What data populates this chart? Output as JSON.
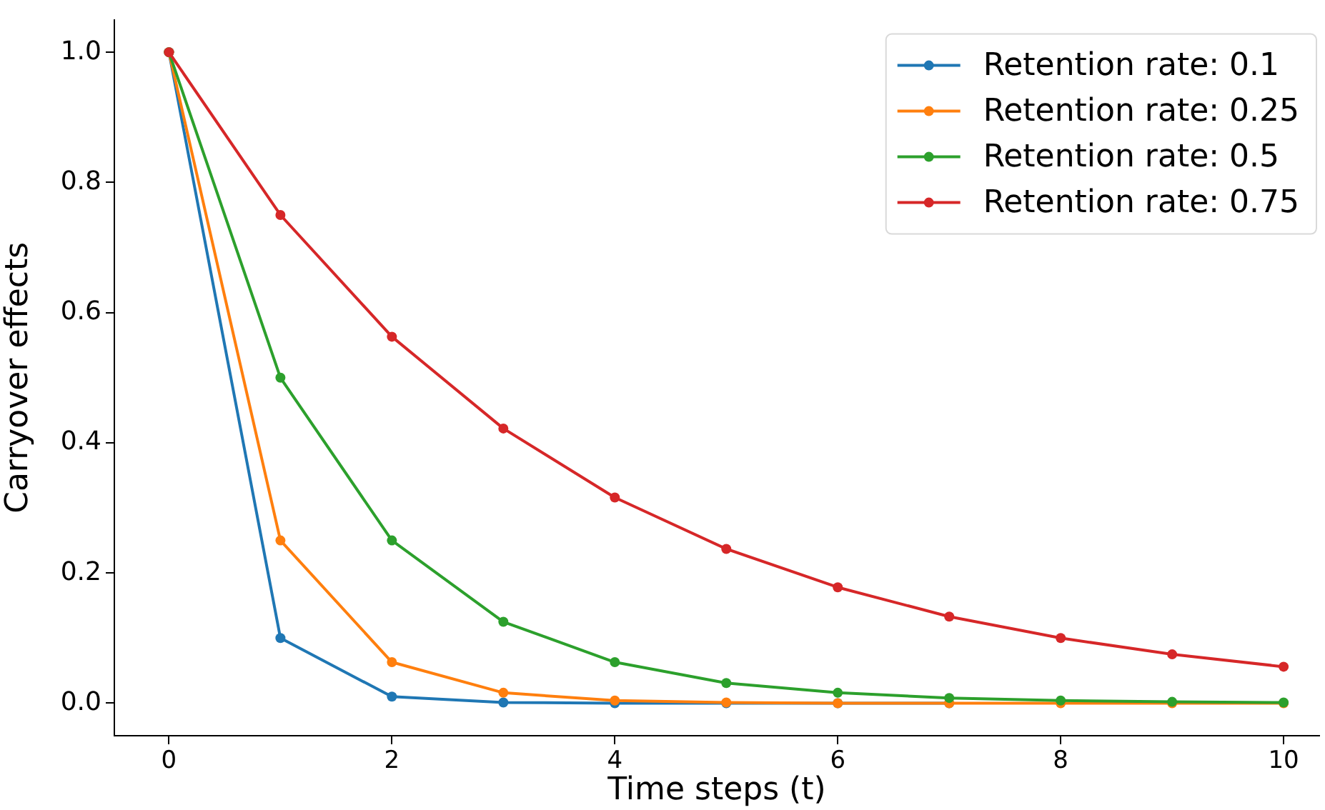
{
  "chart_data": {
    "type": "line",
    "xlabel": "Time steps (t)",
    "ylabel": "Carryover effects",
    "x": [
      0,
      1,
      2,
      3,
      4,
      5,
      6,
      7,
      8,
      9,
      10
    ],
    "series": [
      {
        "name": "Retention rate: 0.1",
        "color": "#1f77b4",
        "values": [
          1,
          0.1,
          0.01,
          0.001,
          0,
          0,
          0,
          0,
          null,
          null,
          null
        ]
      },
      {
        "name": "Retention rate: 0.25",
        "color": "#ff7f0e",
        "values": [
          1,
          0.25,
          0.063,
          0.016,
          0.004,
          0.001,
          0,
          0,
          0,
          0,
          0
        ]
      },
      {
        "name": "Retention rate: 0.5",
        "color": "#2ca02c",
        "values": [
          1,
          0.5,
          0.25,
          0.125,
          0.063,
          0.031,
          0.016,
          0.008,
          0.004,
          0.002,
          0.001
        ]
      },
      {
        "name": "Retention rate: 0.75",
        "color": "#d62728",
        "values": [
          1,
          0.75,
          0.563,
          0.422,
          0.316,
          0.237,
          0.178,
          0.133,
          0.1,
          0.075,
          0.056
        ]
      }
    ],
    "xlim": [
      -0.49,
      10.32
    ],
    "xticks": [
      0,
      2,
      4,
      6,
      8,
      10
    ],
    "ylim": [
      -0.05,
      1.05
    ],
    "yticks": [
      {
        "value": 0,
        "label": "0.0"
      },
      {
        "value": 0.2,
        "label": "0.2"
      },
      {
        "value": 0.4,
        "label": "0.4"
      },
      {
        "value": 0.6,
        "label": "0.6"
      },
      {
        "value": 0.8,
        "label": "0.8"
      },
      {
        "value": 1,
        "label": "1.0"
      }
    ],
    "grid": false,
    "legend": "top right",
    "marker": "circle",
    "line_style": "solid"
  }
}
